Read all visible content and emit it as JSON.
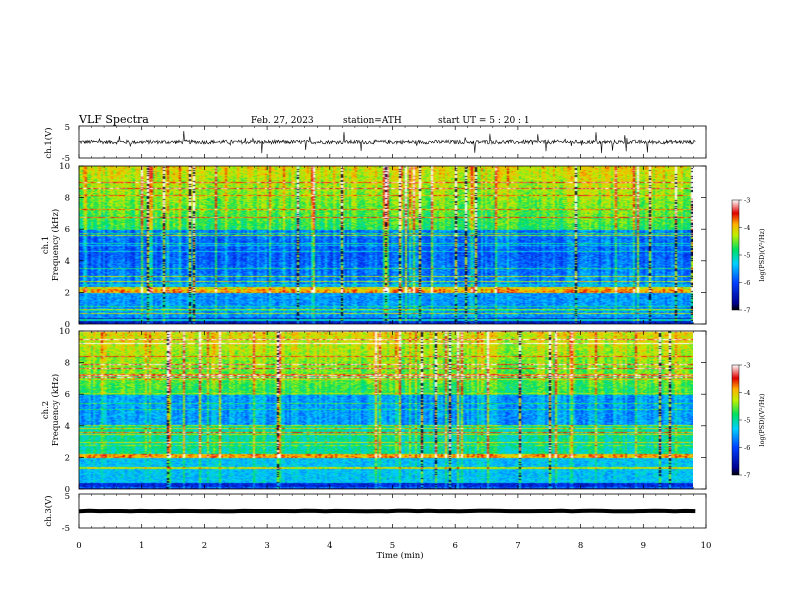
{
  "header": {
    "title": "VLF  Spectra",
    "date": "Feb. 27, 2023",
    "station": "station=ATH",
    "start": "start  UT  =    5  : 20 : 1"
  },
  "axes": {
    "ch1_volt_label": "ch.1(V)",
    "ch1_freq_label_line1": "ch.1",
    "ch1_freq_label_line2": "Frequency (kHz)",
    "ch2_freq_label_line1": "ch.2",
    "ch2_freq_label_line2": "Frequency (kHz)",
    "ch3_volt_label": "ch.3(V)",
    "xlabel": "Time  (min)",
    "colorbar_label": "log(PSD)(V²/Hz)"
  },
  "colors": {
    "background": "#ffffff",
    "axis": "#000000",
    "spectrum_low": "#0000c8",
    "spectrum_mid": "#00e060",
    "spectrum_high": "#d01010"
  },
  "chart_data": [
    {
      "type": "line",
      "name": "ch1-waveform",
      "xlim": [
        0,
        10
      ],
      "ylim": [
        -5,
        5
      ],
      "yticks": [
        "5",
        "-5"
      ],
      "x_data_end": 9.83,
      "baseline": 0,
      "noise_amplitude": 1.2,
      "spike_amplitude": 3.5
    },
    {
      "type": "heatmap",
      "name": "ch1-spectrogram",
      "xlim": [
        0,
        10
      ],
      "ylim": [
        0,
        10
      ],
      "yticks": [
        "0",
        "2",
        "4",
        "6",
        "8",
        "10"
      ],
      "x_data_end": 9.83,
      "log_psd_range": [
        -7,
        -3
      ]
    },
    {
      "type": "heatmap",
      "name": "ch2-spectrogram",
      "xlim": [
        0,
        10
      ],
      "ylim": [
        0,
        10
      ],
      "yticks": [
        "0",
        "2",
        "4",
        "6",
        "8",
        "10"
      ],
      "x_data_end": 9.83,
      "log_psd_range": [
        -7,
        -3
      ]
    },
    {
      "type": "line",
      "name": "ch3-waveform",
      "xlim": [
        0,
        10
      ],
      "ylim": [
        -5,
        5
      ],
      "yticks": [
        "5",
        "-5"
      ],
      "x_data_end": 9.83,
      "baseline": 0,
      "noise_amplitude": 0.15
    }
  ],
  "xticks": [
    "0",
    "1",
    "2",
    "3",
    "4",
    "5",
    "6",
    "7",
    "8",
    "9",
    "10"
  ],
  "colorbar_ticks": [
    "-3",
    "-4",
    "-5",
    "-6",
    "-7"
  ]
}
